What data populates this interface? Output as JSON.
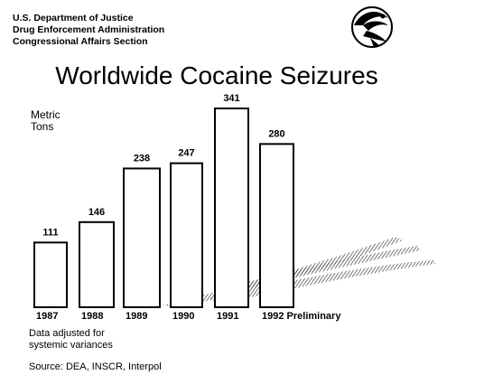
{
  "header": {
    "line1": "U.S. Department of Justice",
    "line2": "Drug Enforcement Administration",
    "line3": "Congressional Affairs Section"
  },
  "logo": {
    "icon": "dea-seal-icon"
  },
  "notes": {
    "adjusted_line1": "Data adjusted for",
    "adjusted_line2": "systemic variances",
    "source": "Source: DEA, INSCR, Interpol"
  },
  "colors": {
    "bar_fill": "#ffffff",
    "bar_stroke": "#000000",
    "stripe": "#000000"
  },
  "chart_data": {
    "type": "bar",
    "title": "Worldwide Cocaine Seizures",
    "ylabel_line1": "Metric",
    "ylabel_line2": "Tons",
    "xlabel": "",
    "categories": [
      "1987",
      "1988",
      "1989",
      "1990",
      "1991",
      "1992 Preliminary"
    ],
    "values": [
      111,
      146,
      238,
      247,
      341,
      280
    ],
    "ylim": [
      0,
      341
    ],
    "grid": false,
    "legend": "none"
  }
}
